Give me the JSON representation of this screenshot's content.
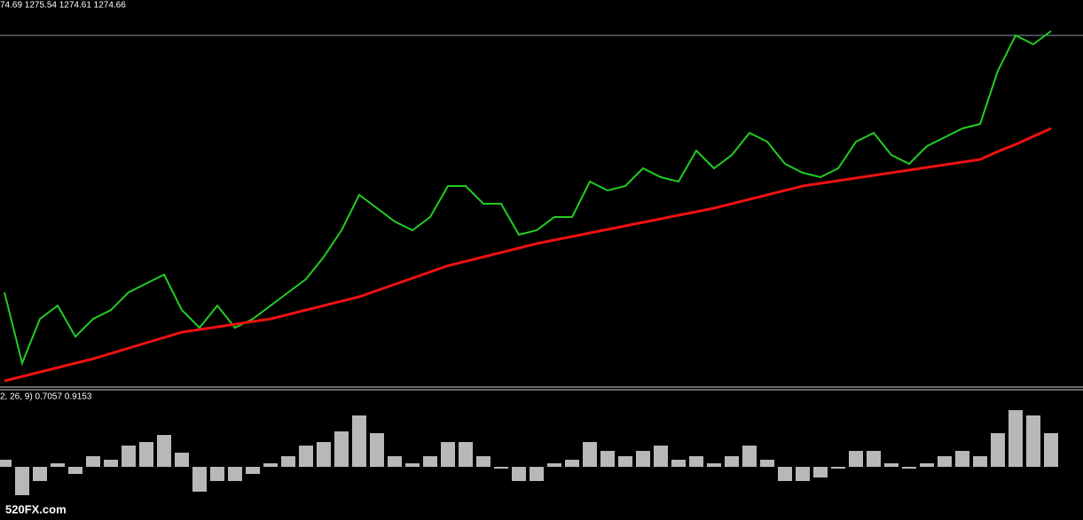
{
  "chart_data": [
    {
      "type": "line",
      "title": "74.69 1275.54 1274.61 1274.66",
      "ylim": [
        0,
        108.75
      ],
      "level": 98.75,
      "level_color": "#8a9aa8",
      "series": [
        {
          "color": "#22cc22",
          "values": [
            26.25,
            6.25,
            18.75,
            22.5,
            13.75,
            18.75,
            21.25,
            26.25,
            28.75,
            31.25,
            21.25,
            16.25,
            22.5,
            16.25,
            18.75,
            22.5,
            26.25,
            30,
            36.25,
            43.75,
            53.75,
            50,
            46.25,
            43.75,
            47.5,
            56.25,
            56.25,
            51.25,
            51.25,
            42.5,
            43.75,
            47.5,
            47.5,
            57.5,
            55,
            56.25,
            61.25,
            58.75,
            57.5,
            66.25,
            61.25,
            65,
            71.25,
            68.75,
            62.5,
            60,
            58.75,
            61.25,
            68.75,
            71.25,
            65,
            62.5,
            67.5,
            70,
            72.5,
            73.75,
            88.75,
            98.75,
            96.25,
            100
          ]
        },
        {
          "color": "#ee1111",
          "values": [
            1.25,
            2.5,
            3.75,
            5,
            6.25,
            7.5,
            9,
            10.5,
            12,
            13.5,
            15,
            15.75,
            16.5,
            17.25,
            18,
            18.75,
            20,
            21.25,
            22.5,
            23.75,
            25,
            26.75,
            28.5,
            30.25,
            32,
            33.75,
            35,
            36.25,
            37.5,
            38.75,
            40,
            41,
            42,
            43,
            44,
            45,
            46,
            47,
            48,
            49,
            50,
            51.25,
            52.5,
            53.75,
            55,
            56.25,
            57,
            57.75,
            58.5,
            59.25,
            60,
            60.75,
            61.5,
            62.25,
            63,
            63.75,
            66,
            68,
            70.25,
            72.5
          ]
        }
      ]
    },
    {
      "type": "bar",
      "title": "2, 26, 9) 0.7057 0.9153",
      "ylim": [
        -1.5,
        1.8
      ],
      "color": "#d8d8d8",
      "values": [
        0.2,
        -0.8,
        -0.4,
        0.1,
        -0.2,
        0.3,
        0.2,
        0.6,
        0.7,
        0.9,
        0.4,
        -0.7,
        -0.4,
        -0.4,
        -0.2,
        0.1,
        0.3,
        0.6,
        0.7,
        1,
        1.45,
        0.95,
        0.3,
        0.1,
        0.3,
        0.7,
        0.7,
        0.3,
        -0.05,
        -0.4,
        -0.4,
        0.1,
        0.2,
        0.7,
        0.45,
        0.3,
        0.45,
        0.6,
        0.2,
        0.3,
        0.1,
        0.3,
        0.6,
        0.2,
        -0.4,
        -0.4,
        -0.3,
        -0.05,
        0.45,
        0.45,
        0.1,
        -0.05,
        0.1,
        0.3,
        0.45,
        0.3,
        0.95,
        1.6,
        1.45,
        0.95
      ]
    }
  ],
  "watermark": "520FX.com"
}
